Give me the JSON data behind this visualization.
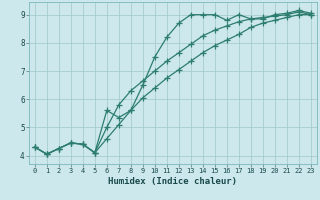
{
  "title": "",
  "xlabel": "Humidex (Indice chaleur)",
  "ylabel": "",
  "bg_color": "#cce8ec",
  "line_color": "#2d7d6e",
  "grid_color": "#a8ccce",
  "xlim": [
    -0.5,
    23.5
  ],
  "ylim": [
    3.7,
    9.45
  ],
  "xticks": [
    0,
    1,
    2,
    3,
    4,
    5,
    6,
    7,
    8,
    9,
    10,
    11,
    12,
    13,
    14,
    15,
    16,
    17,
    18,
    19,
    20,
    21,
    22,
    23
  ],
  "yticks": [
    4,
    5,
    6,
    7,
    8,
    9
  ],
  "line1_x": [
    0,
    1,
    2,
    3,
    4,
    5,
    6,
    7,
    8,
    9,
    10,
    11,
    12,
    13,
    14,
    15,
    16,
    17,
    18,
    19,
    20,
    21,
    22,
    23
  ],
  "line1_y": [
    4.3,
    4.05,
    4.25,
    4.45,
    4.4,
    4.1,
    5.6,
    5.35,
    5.6,
    6.5,
    7.5,
    8.2,
    8.7,
    9.0,
    9.0,
    9.0,
    8.8,
    9.0,
    8.85,
    8.85,
    9.0,
    9.05,
    9.15,
    9.05
  ],
  "line2_x": [
    0,
    1,
    2,
    3,
    4,
    5,
    6,
    7,
    8,
    9,
    10,
    11,
    12,
    13,
    14,
    15,
    16,
    17,
    18,
    19,
    20,
    21,
    22,
    23
  ],
  "line2_y": [
    4.3,
    4.05,
    4.25,
    4.45,
    4.4,
    4.1,
    5.0,
    5.8,
    6.3,
    6.65,
    7.0,
    7.35,
    7.65,
    7.95,
    8.25,
    8.45,
    8.6,
    8.75,
    8.85,
    8.9,
    8.95,
    9.0,
    9.1,
    9.0
  ],
  "line3_x": [
    0,
    1,
    2,
    3,
    4,
    5,
    6,
    7,
    8,
    9,
    10,
    11,
    12,
    13,
    14,
    15,
    16,
    17,
    18,
    19,
    20,
    21,
    22,
    23
  ],
  "line3_y": [
    4.3,
    4.05,
    4.25,
    4.45,
    4.4,
    4.1,
    4.6,
    5.1,
    5.6,
    6.05,
    6.4,
    6.75,
    7.05,
    7.35,
    7.65,
    7.9,
    8.1,
    8.3,
    8.55,
    8.7,
    8.8,
    8.9,
    9.0,
    9.0
  ],
  "marker": "+",
  "markersize": 4,
  "linewidth": 0.9
}
